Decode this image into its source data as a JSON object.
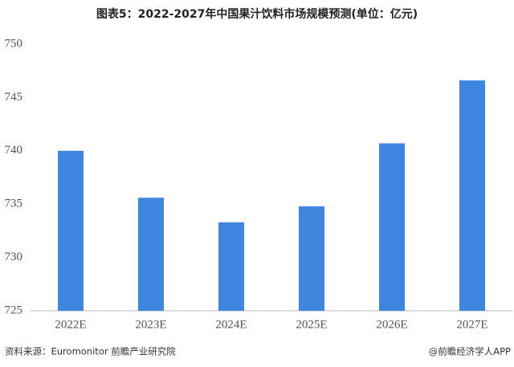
{
  "chart_data": {
    "type": "bar",
    "title": "图表5：2022-2027年中国果汁饮料市场规模预测(单位：亿元)",
    "categories": [
      "2022E",
      "2023E",
      "2024E",
      "2025E",
      "2026E",
      "2027E"
    ],
    "values": [
      740.0,
      735.6,
      733.3,
      734.8,
      740.7,
      746.6
    ],
    "color": "#3f86e0",
    "ylim": [
      725,
      750
    ],
    "yticks": [
      725,
      730,
      735,
      740,
      745,
      750
    ],
    "grid": false,
    "source": "资料来源：Euromonitor 前瞻产业研究院",
    "credit": "@前瞻经济学人APP"
  }
}
